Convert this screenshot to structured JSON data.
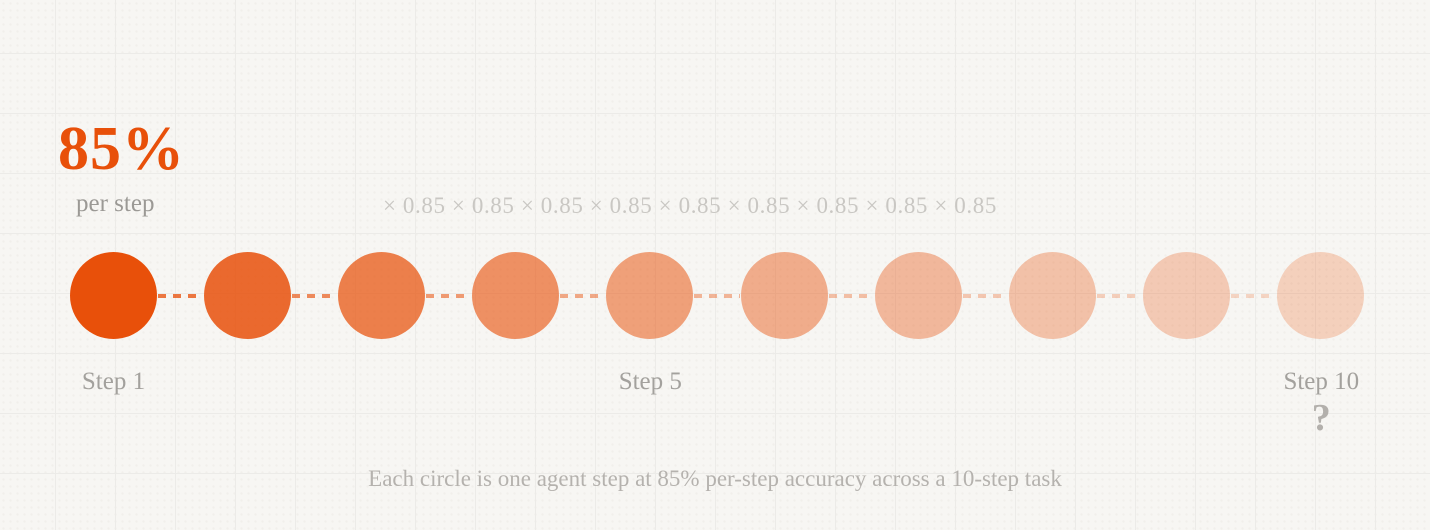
{
  "colors": {
    "accent": "#e8500a",
    "background": "#f7f6f3",
    "grid_line": "#ecebe8",
    "muted_text": "#9b9995",
    "faint_text": "#c9c7c3",
    "label_text": "#a3a19d",
    "marker_text": "#b3b0ac",
    "caption_text": "#b5b2ae"
  },
  "header": {
    "rate_value": "85%",
    "rate_label": "per step",
    "multiplication_chain": "× 0.85 × 0.85 × 0.85 × 0.85 × 0.85 × 0.85 × 0.85 × 0.85 × 0.85"
  },
  "sequence": {
    "per_step_accuracy": 0.85,
    "steps": [
      {
        "step": 1,
        "opacity": 1.0
      },
      {
        "step": 2,
        "opacity": 0.85
      },
      {
        "step": 3,
        "opacity": 0.723
      },
      {
        "step": 4,
        "opacity": 0.614
      },
      {
        "step": 5,
        "opacity": 0.522
      },
      {
        "step": 6,
        "opacity": 0.444
      },
      {
        "step": 7,
        "opacity": 0.377
      },
      {
        "step": 8,
        "opacity": 0.321
      },
      {
        "step": 9,
        "opacity": 0.272
      },
      {
        "step": 10,
        "opacity": 0.232
      }
    ]
  },
  "labels": [
    {
      "text": "Step 1",
      "step": 1
    },
    {
      "text": "Step 5",
      "step": 5
    },
    {
      "text": "Step 10",
      "step": 10
    }
  ],
  "unknown_marker": {
    "text": "?",
    "step": 10
  },
  "caption": "Each circle is one agent step at 85% per-step accuracy across a 10-step task"
}
